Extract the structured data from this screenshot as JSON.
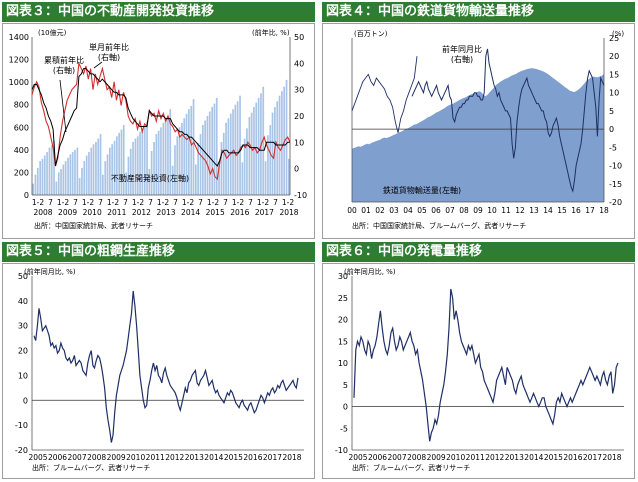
{
  "panels": [
    {
      "title": "図表３：中国の不動産開発投資推移"
    },
    {
      "title": "図表４：中国の鉄道貨物輸送量推移"
    },
    {
      "title": "図表５：中国の粗鋼生産推移"
    },
    {
      "title": "図表６：中国の発電量推移"
    }
  ],
  "colors": {
    "header_bg": "#2e7d32",
    "header_text": "#ffffff",
    "bar_light": "#a9c4e6",
    "area_blue": "#7f9fcf",
    "line_dark": "#1f2f66",
    "line_red": "#d32f2f"
  },
  "chart_data": [
    {
      "type": "bar",
      "title": "図表３：中国の不動産開発投資推移",
      "unit_left": "(10億元)",
      "unit_right": "(前年比, %)",
      "ylim_left": [
        0,
        1400
      ],
      "yticks_left": [
        "0",
        "200",
        "400",
        "600",
        "800",
        "1000",
        "1200",
        "1400"
      ],
      "ylim_right": [
        -10,
        50
      ],
      "yticks_right": [
        "-10",
        "0",
        "10",
        "20",
        "30",
        "40",
        "50"
      ],
      "x_month_labels": [
        "1-2",
        "7",
        "1-2",
        "7",
        "1-2",
        "7",
        "1-2",
        "7",
        "1-2",
        "7",
        "1-2",
        "7",
        "1-2",
        "7",
        "1-2",
        "7",
        "1-2",
        "7",
        "1-2",
        "7",
        "1-2"
      ],
      "x_year_labels": [
        "2008",
        "2009",
        "2010",
        "2011",
        "2012",
        "2013",
        "2014",
        "2015",
        "2016",
        "2017",
        "2018"
      ],
      "annotations": {
        "cumulative": "累積前年比\n(右軸)",
        "monthly": "単月前年比\n(右軸)",
        "investment": "不動産開発投資(左軸)"
      },
      "source": "出所：中国国家統計局、武者リサーチ",
      "investment_monthly": [
        100,
        180,
        240,
        300,
        320,
        350,
        380,
        420,
        440,
        480,
        120,
        200,
        230,
        270,
        300,
        330,
        360,
        380,
        400,
        420,
        150,
        240,
        300,
        350,
        380,
        420,
        450,
        470,
        500,
        540,
        180,
        300,
        360,
        420,
        450,
        480,
        520,
        550,
        580,
        620,
        200,
        340,
        410,
        470,
        500,
        520,
        560,
        590,
        610,
        650,
        230,
        390,
        470,
        540,
        570,
        600,
        640,
        670,
        700,
        760,
        260,
        440,
        520,
        600,
        640,
        680,
        720,
        760,
        790,
        850,
        270,
        460,
        540,
        620,
        660,
        700,
        740,
        780,
        810,
        860,
        270,
        470,
        550,
        640,
        680,
        720,
        760,
        800,
        830,
        880,
        290,
        500,
        590,
        690,
        730,
        780,
        820,
        860,
        900,
        960,
        300,
        530,
        620,
        730,
        780,
        830,
        880,
        920,
        960,
        1020,
        320
      ],
      "cumulative_yoy": [
        30,
        32,
        32,
        30,
        28,
        25,
        23,
        20,
        18,
        15,
        1,
        5,
        9,
        11,
        14,
        16,
        18,
        20,
        22,
        23,
        35,
        36,
        38,
        38,
        37,
        36,
        36,
        35,
        34,
        33,
        34,
        33,
        32,
        31,
        30,
        29,
        29,
        28,
        28,
        28,
        27,
        23,
        21,
        19,
        18,
        17,
        16,
        16,
        16,
        16,
        22,
        21,
        20,
        20,
        20,
        20,
        20,
        19,
        19,
        19,
        17,
        16,
        15,
        14,
        14,
        13,
        13,
        12,
        12,
        11,
        10,
        9,
        8,
        7,
        6,
        5,
        4,
        3,
        2,
        1,
        3,
        6,
        7,
        7,
        6,
        6,
        6,
        6,
        6,
        7,
        9,
        9,
        9,
        8,
        8,
        8,
        8,
        7,
        7,
        7,
        10,
        10,
        10,
        10,
        9,
        9,
        9,
        9,
        9,
        10,
        10
      ],
      "monthly_yoy": [
        28,
        31,
        33,
        31,
        25,
        22,
        18,
        16,
        12,
        8,
        1,
        4,
        12,
        18,
        22,
        26,
        28,
        30,
        31,
        32,
        40,
        38,
        36,
        39,
        34,
        38,
        30,
        36,
        32,
        35,
        38,
        34,
        30,
        31,
        27,
        33,
        26,
        30,
        24,
        29,
        26,
        20,
        18,
        17,
        19,
        15,
        18,
        14,
        17,
        16,
        22,
        20,
        21,
        18,
        22,
        19,
        21,
        18,
        20,
        17,
        16,
        14,
        15,
        12,
        13,
        12,
        11,
        12,
        9,
        10,
        8,
        6,
        5,
        4,
        3,
        1,
        -2,
        0,
        -3,
        -4,
        2,
        7,
        6,
        4,
        5,
        6,
        7,
        5,
        6,
        8,
        9,
        8,
        10,
        9,
        7,
        8,
        6,
        7,
        10,
        12,
        9,
        7,
        5,
        4,
        10,
        8,
        7,
        9,
        11,
        12,
        10
      ]
    },
    {
      "type": "area",
      "title": "図表４：中国の鉄道貨物輸送量推移",
      "unit_left": "(百万トン)",
      "unit_right": "(%)",
      "ylim_left": [
        0,
        400
      ],
      "ylim_right": [
        -20,
        25
      ],
      "yticks_right": [
        "-20",
        "-15",
        "-10",
        "-5",
        "0",
        "5",
        "10",
        "15",
        "20",
        "25"
      ],
      "x_labels": [
        "00",
        "01",
        "02",
        "03",
        "04",
        "05",
        "06",
        "07",
        "08",
        "09",
        "10",
        "11",
        "12",
        "13",
        "14",
        "15",
        "16",
        "17",
        "18"
      ],
      "annotations": {
        "yoy": "前年同月比\n(右軸)",
        "volume": "鉄道貨物輸送量(左軸)"
      },
      "source": "出所：中国国家統計局、ブルームバーグ、武者リサーチ",
      "freight_volume": [
        130,
        132,
        134,
        136,
        135,
        137,
        140,
        142,
        141,
        144,
        146,
        148,
        150,
        152,
        155,
        157,
        156,
        158,
        160,
        163,
        165,
        167,
        170,
        172,
        175,
        178,
        180,
        183,
        186,
        189,
        190,
        193,
        196,
        199,
        202,
        206,
        208,
        211,
        214,
        218,
        220,
        223,
        226,
        229,
        233,
        236,
        238,
        240,
        243,
        246,
        249,
        252,
        254,
        256,
        259,
        262,
        264,
        266,
        268,
        270,
        268,
        262,
        258,
        262,
        268,
        274,
        280,
        286,
        290,
        294,
        297,
        300,
        302,
        305,
        308,
        310,
        312,
        315,
        318,
        320,
        322,
        324,
        325,
        326,
        326,
        325,
        324,
        322,
        320,
        318,
        315,
        312,
        308,
        304,
        300,
        296,
        292,
        288,
        284,
        280,
        276,
        272,
        270,
        268,
        270,
        274,
        278,
        284,
        290,
        296,
        300,
        304,
        306,
        305,
        304,
        306,
        308,
        312
      ],
      "yoy_percent": [
        9,
        10,
        11,
        12,
        13,
        12,
        11,
        10,
        12,
        13,
        11,
        10,
        9,
        10,
        11,
        12,
        10,
        9,
        8,
        9,
        10,
        11,
        12,
        9,
        8,
        3,
        2,
        4,
        5,
        6,
        6,
        7,
        7,
        8,
        8,
        9,
        9,
        9,
        10,
        10,
        9,
        9,
        8,
        8,
        10,
        20,
        22,
        18,
        16,
        14,
        12,
        11,
        9,
        10,
        8,
        7,
        6,
        5,
        5,
        4,
        3,
        -4,
        -8,
        -5,
        2,
        6,
        9,
        11,
        12,
        13,
        14,
        12,
        11,
        10,
        9,
        8,
        7,
        7,
        6,
        5,
        5,
        3,
        2,
        -1,
        -2,
        -1,
        1,
        2,
        3,
        1,
        -2,
        -4,
        -6,
        -8,
        -10,
        -12,
        -14,
        -16,
        -17,
        -14,
        -10,
        -8,
        -6,
        -4,
        0,
        5,
        10,
        14,
        16,
        15,
        14,
        10,
        6,
        -2,
        8,
        14,
        13,
        12
      ],
      "early_line_volume_yoy": [
        5,
        7,
        9,
        11,
        13,
        14,
        15,
        13,
        12,
        14,
        13,
        12,
        11,
        9,
        8,
        6,
        2,
        -1,
        3,
        5,
        8,
        10,
        12,
        14,
        20
      ]
    },
    {
      "type": "line",
      "title": "図表５：中国の粗鋼生産推移",
      "unit": "(前年同月比, %)",
      "ylim": [
        -20,
        50
      ],
      "yticks": [
        "-20",
        "-10",
        "0",
        "10",
        "20",
        "30",
        "40",
        "50"
      ],
      "x_labels": [
        "2005",
        "2006",
        "2007",
        "2008",
        "2009",
        "2010",
        "2011",
        "2012",
        "2013",
        "2014",
        "2015",
        "2016",
        "2017",
        "2018"
      ],
      "source": "出所：ブルームバーグ、武者リサーチ",
      "steel_yoy": [
        26,
        24,
        30,
        37,
        33,
        28,
        29,
        30,
        28,
        26,
        22,
        23,
        21,
        22,
        19,
        20,
        23,
        21,
        20,
        17,
        16,
        17,
        15,
        16,
        18,
        14,
        15,
        16,
        15,
        12,
        11,
        10,
        15,
        18,
        20,
        14,
        13,
        16,
        18,
        17,
        14,
        10,
        5,
        -3,
        -8,
        -12,
        -17,
        -14,
        -5,
        2,
        6,
        10,
        12,
        14,
        17,
        20,
        25,
        30,
        35,
        44,
        38,
        30,
        20,
        10,
        5,
        0,
        -3,
        -2,
        5,
        8,
        12,
        15,
        12,
        14,
        10,
        9,
        7,
        11,
        13,
        10,
        8,
        6,
        5,
        4,
        3,
        1,
        -2,
        -4,
        -1,
        2,
        5,
        3,
        7,
        8,
        10,
        11,
        12,
        7,
        6,
        8,
        9,
        10,
        12,
        9,
        6,
        7,
        8,
        5,
        3,
        4,
        2,
        1,
        0,
        -1,
        1,
        3,
        2,
        4,
        3,
        1,
        -1,
        -2,
        -3,
        -1,
        0,
        -2,
        -3,
        -4,
        -2,
        -1,
        -3,
        -5,
        -4,
        -2,
        0,
        2,
        1,
        -1,
        1,
        3,
        2,
        4,
        5,
        3,
        4,
        6,
        5,
        7,
        8,
        6,
        4,
        5,
        6,
        7,
        8,
        6,
        5,
        9
      ],
      "zero_line": true
    },
    {
      "type": "line",
      "title": "図表６：中国の発電量推移",
      "unit": "(前年同月比, %)",
      "ylim": [
        -10,
        30
      ],
      "yticks": [
        "-10",
        "-5",
        "0",
        "5",
        "10",
        "15",
        "20",
        "25",
        "30"
      ],
      "x_labels": [
        "2005",
        "2006",
        "2007",
        "2008",
        "2009",
        "2010",
        "2011",
        "2012",
        "2013",
        "2014",
        "2015",
        "2016",
        "2017",
        "2018"
      ],
      "source": "出所：ブルームバーグ、武者リサーチ",
      "power_yoy": [
        2,
        13,
        15,
        14,
        16,
        15,
        13,
        12,
        15,
        14,
        11,
        13,
        14,
        16,
        19,
        22,
        18,
        15,
        13,
        12,
        14,
        17,
        18,
        15,
        13,
        14,
        16,
        15,
        13,
        14,
        15,
        16,
        17,
        15,
        14,
        12,
        13,
        10,
        8,
        6,
        3,
        0,
        -4,
        -8,
        -6,
        -5,
        -3,
        -4,
        -2,
        1,
        3,
        5,
        8,
        12,
        18,
        27,
        25,
        20,
        22,
        20,
        17,
        15,
        14,
        13,
        12,
        14,
        13,
        14,
        12,
        10,
        11,
        12,
        9,
        8,
        6,
        5,
        4,
        3,
        2,
        1,
        3,
        6,
        7,
        8,
        9,
        7,
        5,
        9,
        8,
        7,
        6,
        4,
        3,
        5,
        6,
        7,
        5,
        4,
        3,
        2,
        1,
        2,
        3,
        2,
        1,
        0,
        1,
        2,
        2,
        0,
        -1,
        -2,
        -3,
        -4,
        -2,
        1,
        2,
        1,
        3,
        2,
        1,
        0,
        1,
        2,
        1,
        2,
        3,
        4,
        5,
        6,
        5,
        6,
        7,
        8,
        9,
        8,
        7,
        6,
        7,
        6,
        5,
        7,
        8,
        6,
        5,
        7,
        8,
        3,
        5,
        9,
        10
      ]
    }
  ]
}
